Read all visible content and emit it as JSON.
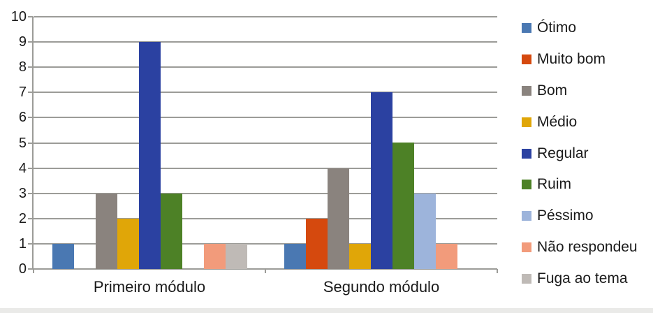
{
  "chart_data": {
    "type": "bar",
    "title": "",
    "categories": [
      "Primeiro módulo",
      "Segundo módulo"
    ],
    "series": [
      {
        "name": "Ótimo",
        "color": "#4A78B2",
        "values": [
          1,
          1
        ]
      },
      {
        "name": "Muito bom",
        "color": "#D5490E",
        "values": [
          0,
          2
        ]
      },
      {
        "name": "Bom",
        "color": "#8A837E",
        "values": [
          3,
          4
        ]
      },
      {
        "name": "Médio",
        "color": "#E0A608",
        "values": [
          2,
          1
        ]
      },
      {
        "name": "Regular",
        "color": "#2B41A1",
        "values": [
          9,
          7
        ]
      },
      {
        "name": "Ruim",
        "color": "#4D8126",
        "values": [
          3,
          5
        ]
      },
      {
        "name": "Péssimo",
        "color": "#9DB4DB",
        "values": [
          0,
          3
        ]
      },
      {
        "name": "Não respondeu",
        "color": "#F29B7B",
        "values": [
          1,
          1
        ]
      },
      {
        "name": "Fuga ao tema",
        "color": "#BFBAB6",
        "values": [
          1,
          0
        ]
      }
    ],
    "xlabel": "",
    "ylabel": "",
    "y_axis": {
      "min": 0,
      "max": 10,
      "step": 1,
      "tick_labels": [
        "0",
        "1",
        "2",
        "3",
        "4",
        "5",
        "6",
        "7",
        "8",
        "9",
        "10"
      ]
    },
    "grid": true,
    "legend_position": "right"
  },
  "colors": {
    "background": "#FFFFFF",
    "gridline": "#9C9C98",
    "axis": "#9C9C98",
    "text": "#1A1A1A",
    "bottom_strip": "#EAEAE8"
  }
}
